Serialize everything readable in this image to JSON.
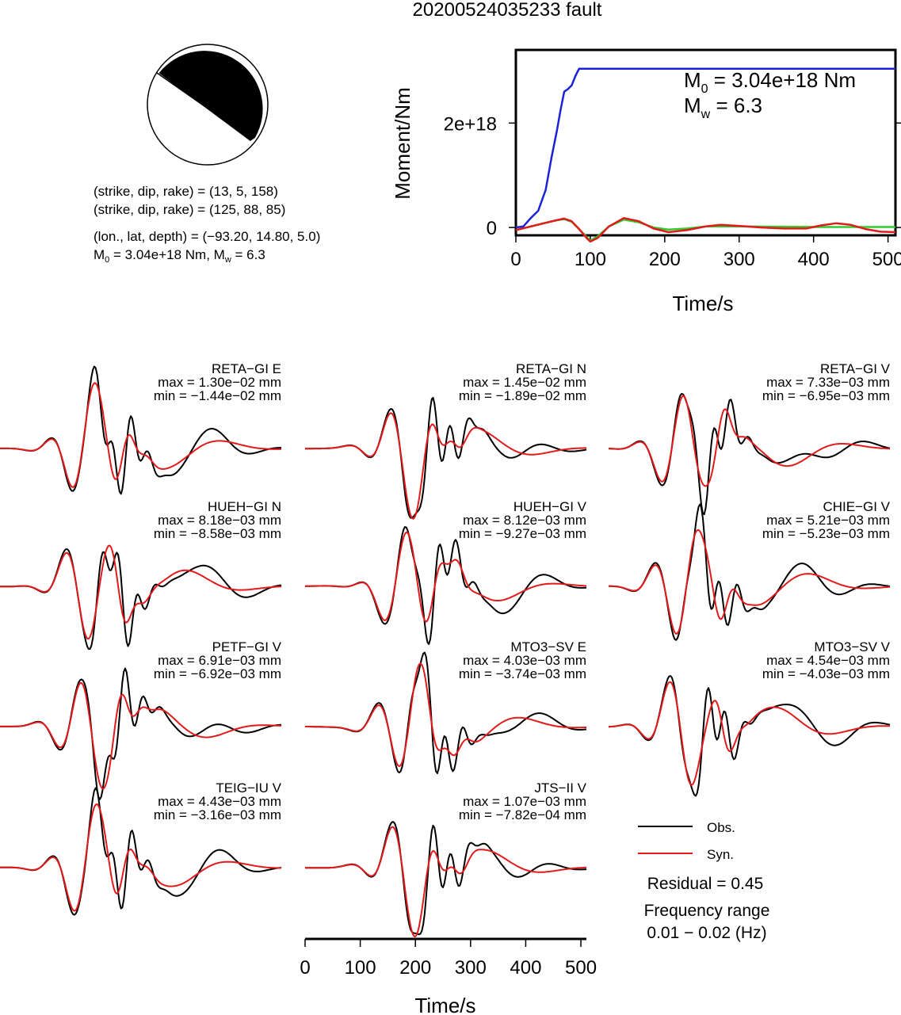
{
  "title": "20200524035233 fault",
  "focal": {
    "np1": "(strike, dip, rake) = (13, 5, 158)",
    "np2": "(strike, dip, rake) = (125, 88, 85)",
    "location": "(lon., lat, depth) = (−93.20, 14.80, 5.0)",
    "moment_prefix": "M",
    "moment_sub": "0",
    "moment_rest": " = 3.04e+18 Nm, M",
    "mw_sub": "w",
    "mw_rest": " = 6.3"
  },
  "legend": {
    "obs": "Obs.",
    "syn": "Syn.",
    "residual": "Residual = 0.45",
    "freq_title": "Frequency range",
    "freq_value": "0.01 − 0.02 (Hz)"
  },
  "colors": {
    "obs": "#000000",
    "syn": "#e31a1c",
    "moment": "#1a24d6",
    "green": "#2ecc2e"
  },
  "chart_data": [
    {
      "type": "line",
      "title": "",
      "xlabel": "Time/s",
      "ylabel": "Moment/Nm",
      "xlim": [
        0,
        510
      ],
      "ylim": [
        -1.5e+17,
        3.4e+18
      ],
      "xticks": [
        0,
        100,
        200,
        300,
        400,
        500
      ],
      "yticks": [
        {
          "v": 0,
          "label": "0"
        },
        {
          "v": 2e+18,
          "label": "2e+18"
        }
      ],
      "annotation": {
        "m0_prefix": "M",
        "m0_sub": "0",
        "m0_rest": " = 3.04e+18 Nm",
        "mw_prefix": "M",
        "mw_sub": "w",
        "mw_rest": " = 6.3"
      },
      "series": [
        {
          "key": "moment",
          "x": [
            0,
            10,
            20,
            30,
            40,
            48,
            55,
            60,
            65,
            70,
            75,
            80,
            85,
            90,
            100,
            200,
            300,
            400,
            510
          ],
          "y": [
            0,
            2e+16,
            1.8e+17,
            3.2e+17,
            7.2e+17,
            1.35e+18,
            1.85e+18,
            2.25e+18,
            2.6e+18,
            2.65e+18,
            2.72e+18,
            2.9e+18,
            3.04e+18,
            3.04e+18,
            3.04e+18,
            3.04e+18,
            3.04e+18,
            3.04e+18,
            3.04e+18
          ]
        },
        {
          "key": "red",
          "x": [
            0,
            20,
            40,
            55,
            65,
            75,
            85,
            95,
            100,
            110,
            125,
            145,
            165,
            185,
            205,
            230,
            255,
            275,
            300,
            330,
            360,
            390,
            410,
            430,
            450,
            470,
            490,
            510
          ],
          "y": [
            -5e+16,
            2e+16,
            9e+16,
            1.4e+17,
            1.7e+17,
            1.2e+17,
            -3e+16,
            -2e+17,
            -2.7e+17,
            -2e+17,
            2e+16,
            1.8e+17,
            1.2e+17,
            -2e+16,
            -9e+16,
            -5e+16,
            2e+16,
            5e+16,
            3e+16,
            0.0,
            -2e+16,
            -2e+16,
            4e+16,
            8e+16,
            5e+16,
            -3e+16,
            -8e+16,
            -9e+16
          ]
        },
        {
          "key": "green",
          "x": [
            0,
            20,
            40,
            55,
            65,
            75,
            85,
            95,
            100,
            110,
            125,
            145,
            165,
            185,
            205,
            230,
            255,
            300,
            400,
            510
          ],
          "y": [
            -5e+16,
            2e+16,
            9e+16,
            1.4e+17,
            1.6e+17,
            1.1e+17,
            -3e+16,
            -1.8e+17,
            -2.5e+17,
            -1.7e+17,
            2e+16,
            1.5e+17,
            1e+17,
            0.0,
            -4e+16,
            -2e+16,
            2e+16,
            2e+16,
            1e+16,
            1e+16
          ]
        }
      ]
    },
    {
      "type": "line",
      "xlabel": "Time/s",
      "xlim": [
        0,
        510
      ],
      "xticks": [
        0,
        100,
        200,
        300,
        400,
        500
      ],
      "stations": [
        {
          "name": "RETA−GI E",
          "max": "max = 1.30e−02 mm",
          "min": "min = −1.44e−02 mm"
        },
        {
          "name": "RETA−GI N",
          "max": "max = 1.45e−02 mm",
          "min": "min = −1.89e−02 mm"
        },
        {
          "name": "RETA−GI V",
          "max": "max = 7.33e−03 mm",
          "min": "min = −6.95e−03 mm"
        },
        {
          "name": "HUEH−GI N",
          "max": "max = 8.18e−03 mm",
          "min": "min = −8.58e−03 mm"
        },
        {
          "name": "HUEH−GI V",
          "max": "max = 8.12e−03 mm",
          "min": "min = −9.27e−03 mm"
        },
        {
          "name": "CHIE−GI V",
          "max": "max = 5.21e−03 mm",
          "min": "min = −5.23e−03 mm"
        },
        {
          "name": "PETF−GI V",
          "max": "max = 6.91e−03 mm",
          "min": "min = −6.92e−03 mm"
        },
        {
          "name": "MTO3−SV E",
          "max": "max = 4.03e−03 mm",
          "min": "min = −3.74e−03 mm"
        },
        {
          "name": "MTO3−SV V",
          "max": "max = 4.54e−03 mm",
          "min": "min = −4.03e−03 mm"
        },
        {
          "name": "TEIG−IU V",
          "max": "max = 4.43e−03 mm",
          "min": "min = −3.16e−03 mm"
        },
        {
          "name": "JTS−II V",
          "max": "max = 1.07e−03 mm",
          "min": "min = −7.82e−04 mm"
        }
      ]
    }
  ]
}
